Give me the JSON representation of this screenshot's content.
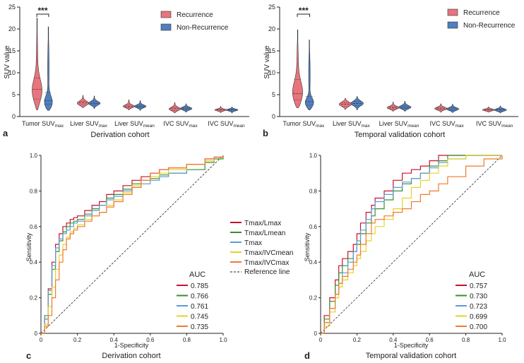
{
  "colors": {
    "recurrence": "#e8757d",
    "non_recurrence": "#4f7fc0",
    "tmax_lmax": "#c8102e",
    "tmax_lmean": "#3a8f2e",
    "tmax": "#5b9bd5",
    "tmax_ivcmean": "#e6d22a",
    "tmax_ivcmax": "#f07a2a",
    "reference": "#222222"
  },
  "chart_data": [
    {
      "panel": "a",
      "type": "violin",
      "xlabel": "Derivation cohort",
      "ylabel": "SUV value",
      "ylim": [
        0,
        25
      ],
      "yticks": [
        "0",
        "5",
        "10",
        "15",
        "20",
        "25"
      ],
      "categories": [
        {
          "main": "Tumor SUV",
          "sub": "max"
        },
        {
          "main": "Liver SUV",
          "sub": "max"
        },
        {
          "main": "Liver SUV",
          "sub": "mean"
        },
        {
          "main": "IVC SUV",
          "sub": "max"
        },
        {
          "main": "IVC SUV",
          "sub": "mean"
        }
      ],
      "legend": [
        "Recurrence",
        "Non-Recurrence"
      ],
      "significance": "***",
      "series": [
        {
          "name": "Recurrence",
          "groups": [
            {
              "min": 1.5,
              "q1": 4.0,
              "median": 6.2,
              "q3": 8.8,
              "max": 22.5,
              "mode": 5.5
            },
            {
              "min": 2.0,
              "q1": 2.6,
              "median": 3.1,
              "q3": 3.5,
              "max": 4.8,
              "mode": 3.0
            },
            {
              "min": 1.5,
              "q1": 2.0,
              "median": 2.3,
              "q3": 2.6,
              "max": 3.8,
              "mode": 2.3
            },
            {
              "min": 0.8,
              "q1": 1.4,
              "median": 1.8,
              "q3": 2.1,
              "max": 3.2,
              "mode": 1.7
            },
            {
              "min": 0.9,
              "q1": 1.3,
              "median": 1.5,
              "q3": 1.7,
              "max": 2.3,
              "mode": 1.5
            }
          ]
        },
        {
          "name": "Non-Recurrence",
          "groups": [
            {
              "min": 1.4,
              "q1": 2.8,
              "median": 3.6,
              "q3": 5.5,
              "max": 20.5,
              "mode": 3.0
            },
            {
              "min": 1.8,
              "q1": 2.6,
              "median": 3.0,
              "q3": 3.4,
              "max": 4.7,
              "mode": 3.0
            },
            {
              "min": 1.4,
              "q1": 2.0,
              "median": 2.3,
              "q3": 2.6,
              "max": 3.6,
              "mode": 2.3
            },
            {
              "min": 1.0,
              "q1": 1.5,
              "median": 1.8,
              "q3": 2.1,
              "max": 2.9,
              "mode": 1.8
            },
            {
              "min": 0.8,
              "q1": 1.3,
              "median": 1.5,
              "q3": 1.7,
              "max": 2.2,
              "mode": 1.5
            }
          ]
        }
      ]
    },
    {
      "panel": "b",
      "type": "violin",
      "xlabel": "Temporal validation cohort",
      "ylabel": "SUV value",
      "ylim": [
        0,
        25
      ],
      "yticks": [
        "0",
        "5",
        "10",
        "15",
        "20",
        "25"
      ],
      "categories": [
        {
          "main": "Tumor SUV",
          "sub": "max"
        },
        {
          "main": "Liver SUV",
          "sub": "max"
        },
        {
          "main": "Liver SUV",
          "sub": "mean"
        },
        {
          "main": "IVC SUV",
          "sub": "max"
        },
        {
          "main": "IVC SUV",
          "sub": "mean"
        }
      ],
      "legend": [
        "Recurrence",
        "Non-Recurrence"
      ],
      "significance": "***",
      "series": [
        {
          "name": "Recurrence",
          "groups": [
            {
              "min": 2.0,
              "q1": 3.8,
              "median": 5.2,
              "q3": 8.5,
              "max": 19.8,
              "mode": 5.0
            },
            {
              "min": 1.6,
              "q1": 2.3,
              "median": 2.8,
              "q3": 3.2,
              "max": 4.2,
              "mode": 2.8
            },
            {
              "min": 1.2,
              "q1": 1.7,
              "median": 2.0,
              "q3": 2.3,
              "max": 3.3,
              "mode": 2.0
            },
            {
              "min": 1.0,
              "q1": 1.5,
              "median": 1.8,
              "q3": 2.1,
              "max": 2.9,
              "mode": 1.8
            },
            {
              "min": 1.0,
              "q1": 1.3,
              "median": 1.5,
              "q3": 1.7,
              "max": 2.2,
              "mode": 1.5
            }
          ]
        },
        {
          "name": "Non-Recurrence",
          "groups": [
            {
              "min": 1.5,
              "q1": 2.6,
              "median": 3.4,
              "q3": 4.6,
              "max": 17.5,
              "mode": 3.0
            },
            {
              "min": 1.5,
              "q1": 2.5,
              "median": 3.0,
              "q3": 3.5,
              "max": 4.6,
              "mode": 3.0
            },
            {
              "min": 1.2,
              "q1": 1.8,
              "median": 2.1,
              "q3": 2.5,
              "max": 3.5,
              "mode": 2.1
            },
            {
              "min": 0.9,
              "q1": 1.4,
              "median": 1.7,
              "q3": 2.0,
              "max": 2.8,
              "mode": 1.7
            },
            {
              "min": 0.8,
              "q1": 1.2,
              "median": 1.5,
              "q3": 1.7,
              "max": 2.4,
              "mode": 1.5
            }
          ]
        }
      ]
    },
    {
      "panel": "c",
      "type": "line",
      "subtype": "roc",
      "xlabel": "1-Specificity",
      "ylabel": "Sensitivity",
      "cohort": "Derivation cohort",
      "xlim": [
        0,
        1
      ],
      "ylim": [
        0,
        1
      ],
      "ticks": [
        "0",
        "0.2",
        "0.4",
        "0.6",
        "0.8",
        "1.0"
      ],
      "legend_title": "AUC",
      "reference_label": "Reference line",
      "series": [
        {
          "name": "Tmax/Lmax",
          "auc": "0.785",
          "x": [
            0,
            0.02,
            0.04,
            0.06,
            0.08,
            0.1,
            0.12,
            0.14,
            0.16,
            0.18,
            0.2,
            0.24,
            0.28,
            0.32,
            0.36,
            0.4,
            0.45,
            0.5,
            0.55,
            0.6,
            0.65,
            0.7,
            0.8,
            0.9,
            0.95,
            1
          ],
          "y": [
            0,
            0.1,
            0.25,
            0.4,
            0.5,
            0.56,
            0.6,
            0.62,
            0.64,
            0.65,
            0.66,
            0.69,
            0.72,
            0.74,
            0.78,
            0.8,
            0.83,
            0.86,
            0.88,
            0.9,
            0.92,
            0.93,
            0.95,
            0.98,
            0.99,
            1
          ]
        },
        {
          "name": "Tmax/Lmean",
          "auc": "0.766",
          "x": [
            0,
            0.02,
            0.04,
            0.06,
            0.08,
            0.1,
            0.12,
            0.14,
            0.16,
            0.18,
            0.2,
            0.24,
            0.28,
            0.32,
            0.36,
            0.4,
            0.45,
            0.5,
            0.55,
            0.6,
            0.65,
            0.7,
            0.8,
            0.9,
            0.95,
            1
          ],
          "y": [
            0,
            0.08,
            0.22,
            0.36,
            0.46,
            0.52,
            0.57,
            0.6,
            0.62,
            0.63,
            0.64,
            0.67,
            0.7,
            0.72,
            0.76,
            0.78,
            0.81,
            0.84,
            0.86,
            0.87,
            0.89,
            0.9,
            0.92,
            0.96,
            0.98,
            1
          ]
        },
        {
          "name": "Tmax",
          "auc": "0.761",
          "x": [
            0,
            0.02,
            0.04,
            0.06,
            0.08,
            0.1,
            0.12,
            0.14,
            0.16,
            0.18,
            0.2,
            0.24,
            0.28,
            0.32,
            0.36,
            0.4,
            0.45,
            0.5,
            0.55,
            0.6,
            0.65,
            0.7,
            0.8,
            0.9,
            0.95,
            1
          ],
          "y": [
            0,
            0.1,
            0.24,
            0.38,
            0.48,
            0.53,
            0.56,
            0.58,
            0.6,
            0.62,
            0.63,
            0.66,
            0.69,
            0.72,
            0.75,
            0.77,
            0.8,
            0.82,
            0.84,
            0.86,
            0.88,
            0.9,
            0.95,
            0.97,
            0.99,
            1
          ]
        },
        {
          "name": "Tmax/IVCmean",
          "auc": "0.745",
          "x": [
            0,
            0.02,
            0.04,
            0.06,
            0.08,
            0.1,
            0.12,
            0.14,
            0.16,
            0.18,
            0.2,
            0.24,
            0.28,
            0.32,
            0.36,
            0.4,
            0.45,
            0.5,
            0.55,
            0.6,
            0.65,
            0.7,
            0.8,
            0.9,
            0.95,
            1
          ],
          "y": [
            0,
            0.05,
            0.15,
            0.26,
            0.36,
            0.44,
            0.5,
            0.54,
            0.57,
            0.59,
            0.61,
            0.64,
            0.66,
            0.68,
            0.72,
            0.75,
            0.79,
            0.83,
            0.86,
            0.88,
            0.9,
            0.92,
            0.95,
            0.97,
            0.99,
            1
          ]
        },
        {
          "name": "Tmax/IVCmax",
          "auc": "0.735",
          "x": [
            0,
            0.02,
            0.04,
            0.06,
            0.08,
            0.1,
            0.12,
            0.14,
            0.16,
            0.18,
            0.2,
            0.24,
            0.28,
            0.32,
            0.36,
            0.4,
            0.45,
            0.5,
            0.55,
            0.6,
            0.65,
            0.7,
            0.8,
            0.9,
            0.95,
            1
          ],
          "y": [
            0,
            0.04,
            0.1,
            0.2,
            0.3,
            0.4,
            0.47,
            0.53,
            0.56,
            0.58,
            0.6,
            0.63,
            0.66,
            0.68,
            0.71,
            0.74,
            0.78,
            0.82,
            0.86,
            0.9,
            0.92,
            0.93,
            0.95,
            0.98,
            0.99,
            1
          ]
        }
      ]
    },
    {
      "panel": "d",
      "type": "line",
      "subtype": "roc",
      "xlabel": "1-Specificity",
      "ylabel": "Sensitivity",
      "cohort": "Temporal validation cohort",
      "xlim": [
        0,
        1
      ],
      "ylim": [
        0,
        1
      ],
      "ticks": [
        "0",
        "0.2",
        "0.4",
        "0.6",
        "0.8",
        "1.0"
      ],
      "legend_title": "AUC",
      "series": [
        {
          "name": "Tmax/Lmax",
          "auc": "0.757",
          "x": [
            0,
            0.02,
            0.05,
            0.08,
            0.1,
            0.12,
            0.15,
            0.18,
            0.2,
            0.22,
            0.25,
            0.28,
            0.3,
            0.35,
            0.4,
            0.45,
            0.5,
            0.55,
            0.6,
            0.65,
            0.7,
            0.8,
            0.9,
            1
          ],
          "y": [
            0,
            0.1,
            0.2,
            0.3,
            0.38,
            0.42,
            0.46,
            0.5,
            0.56,
            0.62,
            0.68,
            0.72,
            0.76,
            0.8,
            0.86,
            0.9,
            0.92,
            0.94,
            0.97,
            1,
            1,
            1,
            1,
            1
          ]
        },
        {
          "name": "Tmax/Lmean",
          "auc": "0.730",
          "x": [
            0,
            0.02,
            0.05,
            0.08,
            0.1,
            0.12,
            0.15,
            0.18,
            0.2,
            0.22,
            0.25,
            0.28,
            0.3,
            0.35,
            0.4,
            0.45,
            0.5,
            0.55,
            0.6,
            0.65,
            0.7,
            0.8,
            0.9,
            1
          ],
          "y": [
            0,
            0.08,
            0.18,
            0.27,
            0.34,
            0.38,
            0.42,
            0.46,
            0.5,
            0.56,
            0.62,
            0.66,
            0.7,
            0.75,
            0.8,
            0.84,
            0.87,
            0.9,
            0.94,
            0.97,
            1,
            1,
            1,
            1
          ]
        },
        {
          "name": "Tmax",
          "auc": "0.723",
          "x": [
            0,
            0.02,
            0.05,
            0.08,
            0.1,
            0.12,
            0.15,
            0.18,
            0.2,
            0.22,
            0.25,
            0.28,
            0.3,
            0.35,
            0.4,
            0.45,
            0.5,
            0.55,
            0.6,
            0.65,
            0.7,
            0.8,
            0.9,
            1
          ],
          "y": [
            0,
            0.06,
            0.14,
            0.22,
            0.28,
            0.34,
            0.4,
            0.46,
            0.52,
            0.58,
            0.64,
            0.7,
            0.74,
            0.78,
            0.82,
            0.85,
            0.87,
            0.9,
            0.93,
            0.96,
            0.98,
            1,
            1,
            1
          ]
        },
        {
          "name": "Tmax/IVCmean",
          "auc": "0.699",
          "x": [
            0,
            0.02,
            0.05,
            0.08,
            0.1,
            0.12,
            0.15,
            0.18,
            0.2,
            0.22,
            0.25,
            0.28,
            0.3,
            0.35,
            0.4,
            0.45,
            0.5,
            0.55,
            0.6,
            0.65,
            0.7,
            0.8,
            0.9,
            1
          ],
          "y": [
            0,
            0.04,
            0.12,
            0.2,
            0.26,
            0.3,
            0.34,
            0.38,
            0.42,
            0.46,
            0.52,
            0.56,
            0.6,
            0.64,
            0.7,
            0.76,
            0.82,
            0.86,
            0.9,
            0.94,
            0.98,
            1,
            1,
            1
          ]
        },
        {
          "name": "Tmax/IVCmax",
          "auc": "0.700",
          "x": [
            0,
            0.02,
            0.05,
            0.08,
            0.1,
            0.12,
            0.15,
            0.18,
            0.2,
            0.22,
            0.25,
            0.28,
            0.3,
            0.35,
            0.4,
            0.45,
            0.5,
            0.55,
            0.6,
            0.65,
            0.7,
            0.8,
            0.9,
            1
          ],
          "y": [
            0,
            0.06,
            0.14,
            0.22,
            0.28,
            0.32,
            0.36,
            0.4,
            0.44,
            0.5,
            0.56,
            0.62,
            0.64,
            0.66,
            0.68,
            0.7,
            0.74,
            0.78,
            0.8,
            0.84,
            0.88,
            0.94,
            0.98,
            1
          ]
        }
      ]
    }
  ]
}
